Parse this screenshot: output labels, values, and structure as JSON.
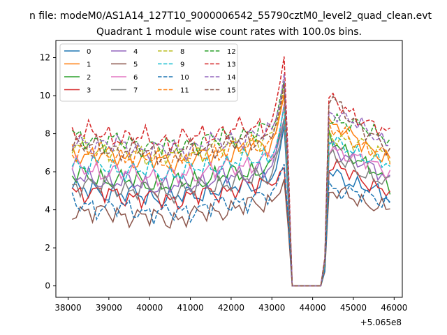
{
  "suptitle": "n file: modeM0/AS1A14_127T10_9000006542_55790cztM0_level2_quad_clean.evt",
  "chart_data": {
    "type": "line",
    "title": "Quadrant 1 module wise count rates with 100.0s bins.",
    "xlabel": "",
    "ylabel": "",
    "x_offset_label": "+5.065e8",
    "xlim": [
      37700,
      46200
    ],
    "ylim": [
      -0.6,
      12.9
    ],
    "x_ticks": [
      38000,
      39000,
      40000,
      41000,
      42000,
      43000,
      44000,
      45000,
      46000
    ],
    "y_ticks": [
      0,
      2,
      4,
      6,
      8,
      10,
      12
    ],
    "legend_position": "upper-left",
    "grid": false,
    "series": [
      {
        "name": "0",
        "color": "#1f77b4",
        "dash": false,
        "base": 5.1,
        "peak": 8.2,
        "after": 6.0,
        "after_end": 4.6
      },
      {
        "name": "1",
        "color": "#ff7f0e",
        "dash": false,
        "base": 7.0,
        "peak": 10.2,
        "after": 8.6,
        "after_end": 6.6
      },
      {
        "name": "2",
        "color": "#2ca02c",
        "dash": false,
        "base": 5.8,
        "peak": 9.6,
        "after": 7.8,
        "after_end": 5.3
      },
      {
        "name": "3",
        "color": "#d62728",
        "dash": false,
        "base": 5.0,
        "peak": 6.2,
        "after": 6.4,
        "after_end": 4.9
      },
      {
        "name": "4",
        "color": "#9467bd",
        "dash": false,
        "base": 5.7,
        "peak": 9.0,
        "after": 7.4,
        "after_end": 5.6
      },
      {
        "name": "5",
        "color": "#8c564b",
        "dash": false,
        "base": 4.0,
        "peak": 5.6,
        "after": 5.0,
        "after_end": 4.0
      },
      {
        "name": "6",
        "color": "#e377c2",
        "dash": false,
        "base": 6.2,
        "peak": 9.4,
        "after": 7.3,
        "after_end": 6.0
      },
      {
        "name": "7",
        "color": "#7f7f7f",
        "dash": false,
        "base": 5.4,
        "peak": 8.8,
        "after": 6.8,
        "after_end": 5.3
      },
      {
        "name": "8",
        "color": "#bcbd22",
        "dash": true,
        "base": 7.3,
        "peak": 10.6,
        "after": 8.0,
        "after_end": 6.9
      },
      {
        "name": "9",
        "color": "#17becf",
        "dash": true,
        "base": 6.4,
        "peak": 9.2,
        "after": 7.6,
        "after_end": 6.3
      },
      {
        "name": "10",
        "color": "#1f77b4",
        "dash": true,
        "base": 4.3,
        "peak": 6.6,
        "after": 5.2,
        "after_end": 4.4
      },
      {
        "name": "11",
        "color": "#ff7f0e",
        "dash": true,
        "base": 7.1,
        "peak": 10.2,
        "after": 8.3,
        "after_end": 6.7
      },
      {
        "name": "12",
        "color": "#2ca02c",
        "dash": true,
        "base": 7.8,
        "peak": 10.8,
        "after": 8.9,
        "after_end": 7.8
      },
      {
        "name": "13",
        "color": "#d62728",
        "dash": true,
        "base": 8.1,
        "peak": 12.2,
        "after": 9.8,
        "after_end": 7.9
      },
      {
        "name": "14",
        "color": "#9467bd",
        "dash": true,
        "base": 7.6,
        "peak": 11.2,
        "after": 9.3,
        "after_end": 7.5
      },
      {
        "name": "15",
        "color": "#8c564b",
        "dash": true,
        "base": 7.4,
        "peak": 10.4,
        "after": 9.9,
        "after_end": 7.0
      }
    ]
  }
}
